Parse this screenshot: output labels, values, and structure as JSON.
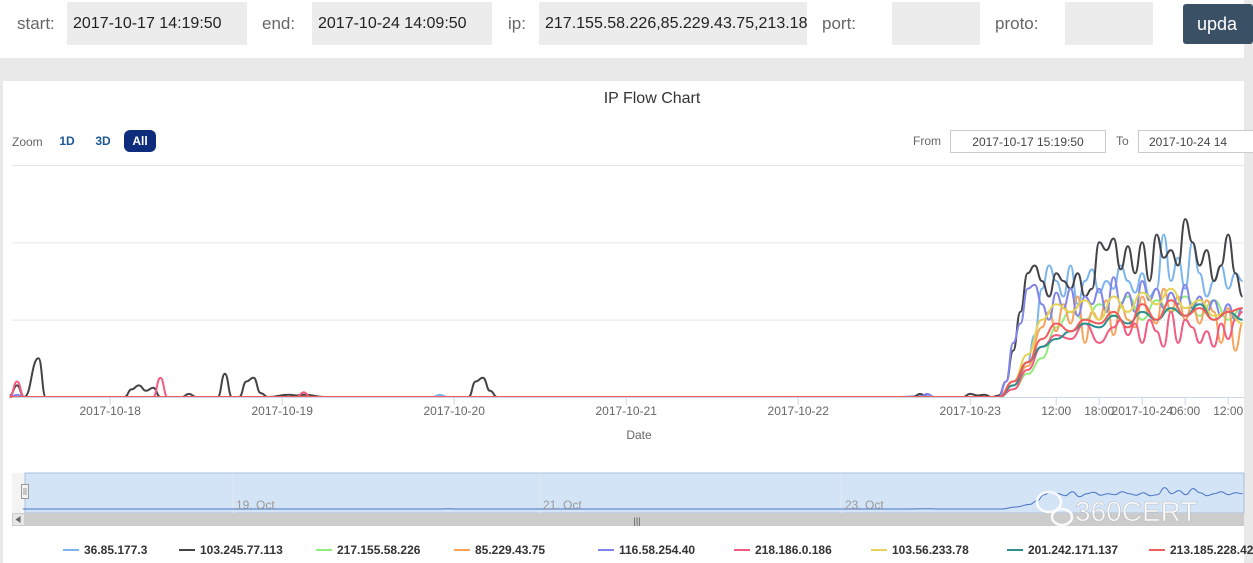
{
  "filters": {
    "start_label": "start:",
    "start_value": "2017-10-17 14:19:50",
    "end_label": "end:",
    "end_value": "2017-10-24 14:09:50",
    "ip_label": "ip:",
    "ip_value": "217.155.58.226,85.229.43.75,213.18",
    "port_label": "port:",
    "port_value": "",
    "proto_label": "proto:",
    "proto_value": "",
    "update_label": "upda"
  },
  "range_selector": {
    "zoom_label": "Zoom",
    "buttons": [
      "1D",
      "3D",
      "All"
    ],
    "active": "All",
    "from_label": "From",
    "from_value": "2017-10-17 15:19:50",
    "to_label": "To",
    "to_value": "2017-10-24 14"
  },
  "navigator": {
    "labels": [
      "19. Oct",
      "21. Oct",
      "23. Oct"
    ],
    "handle_icon": "grip-icon",
    "scroll_left_icon": "arrow-left-icon",
    "scroll_grip": "|||"
  },
  "watermark": {
    "text": "360CERT",
    "icon": "wechat-icon"
  },
  "chart_data": {
    "type": "line",
    "title": "IP Flow Chart",
    "xlabel": "Date",
    "ylabel": "",
    "x_ticks": [
      "2017-10-18",
      "2017-10-19",
      "2017-10-20",
      "2017-10-21",
      "2017-10-22",
      "2017-10-23",
      "12:00",
      "18:00",
      "2017-10-24",
      "06:00",
      "12:00"
    ],
    "x_tick_hours": [
      0,
      24,
      48,
      72,
      96,
      120,
      132,
      138,
      144,
      150,
      156
    ],
    "x_range_hours": [
      -13.7,
      158.2
    ],
    "y_range": [
      0,
      300
    ],
    "y_gridlines": [
      100,
      200,
      300
    ],
    "grid": true,
    "legend_position": "bottom",
    "series": [
      {
        "name": "36.85.177.3",
        "color": "#7cb5ec",
        "points": [
          [
            -14,
            0
          ],
          [
            45,
            0
          ],
          [
            46,
            3
          ],
          [
            47,
            0
          ],
          [
            110,
            0
          ],
          [
            114,
            2
          ],
          [
            115,
            0
          ],
          [
            124,
            0
          ],
          [
            126,
            20
          ],
          [
            128,
            45
          ],
          [
            129,
            80
          ],
          [
            130,
            140
          ],
          [
            131,
            170
          ],
          [
            132,
            150
          ],
          [
            133,
            130
          ],
          [
            134,
            170
          ],
          [
            135,
            120
          ],
          [
            136,
            150
          ],
          [
            137,
            165
          ],
          [
            138,
            135
          ],
          [
            139,
            150
          ],
          [
            140,
            140
          ],
          [
            141,
            170
          ],
          [
            142,
            150
          ],
          [
            143,
            135
          ],
          [
            144,
            160
          ],
          [
            145,
            130
          ],
          [
            146,
            140
          ],
          [
            147,
            210
          ],
          [
            148,
            150
          ],
          [
            149,
            180
          ],
          [
            150,
            140
          ],
          [
            151,
            200
          ],
          [
            152,
            160
          ],
          [
            153,
            130
          ],
          [
            154,
            150
          ],
          [
            155,
            170
          ],
          [
            156,
            140
          ],
          [
            157,
            160
          ],
          [
            158,
            150
          ]
        ]
      },
      {
        "name": "103.245.77.113",
        "color": "#434348",
        "points": [
          [
            -14,
            2
          ],
          [
            -13,
            15
          ],
          [
            -12,
            0
          ],
          [
            -10,
            50
          ],
          [
            -9,
            0
          ],
          [
            2,
            0
          ],
          [
            3,
            10
          ],
          [
            4,
            15
          ],
          [
            5,
            8
          ],
          [
            6,
            12
          ],
          [
            7,
            0
          ],
          [
            10,
            0
          ],
          [
            11,
            4
          ],
          [
            12,
            0
          ],
          [
            15,
            0
          ],
          [
            16,
            30
          ],
          [
            17,
            0
          ],
          [
            18,
            0
          ],
          [
            19,
            20
          ],
          [
            20,
            25
          ],
          [
            21,
            5
          ],
          [
            22,
            0
          ],
          [
            25,
            3
          ],
          [
            26,
            2
          ],
          [
            27,
            3
          ],
          [
            30,
            0
          ],
          [
            50,
            0
          ],
          [
            51,
            20
          ],
          [
            52,
            25
          ],
          [
            53,
            8
          ],
          [
            54,
            0
          ],
          [
            112,
            0
          ],
          [
            113,
            4
          ],
          [
            114,
            0
          ],
          [
            119,
            0
          ],
          [
            120,
            4
          ],
          [
            121,
            2
          ],
          [
            122,
            3
          ],
          [
            123,
            0
          ],
          [
            124,
            2
          ],
          [
            125,
            20
          ],
          [
            126,
            60
          ],
          [
            127,
            110
          ],
          [
            128,
            160
          ],
          [
            129,
            170
          ],
          [
            130,
            150
          ],
          [
            131,
            130
          ],
          [
            132,
            160
          ],
          [
            133,
            150
          ],
          [
            134,
            140
          ],
          [
            135,
            160
          ],
          [
            136,
            130
          ],
          [
            137,
            140
          ],
          [
            138,
            200
          ],
          [
            139,
            190
          ],
          [
            140,
            205
          ],
          [
            141,
            165
          ],
          [
            142,
            195
          ],
          [
            143,
            160
          ],
          [
            144,
            200
          ],
          [
            145,
            150
          ],
          [
            146,
            210
          ],
          [
            147,
            180
          ],
          [
            148,
            190
          ],
          [
            149,
            170
          ],
          [
            150,
            230
          ],
          [
            151,
            200
          ],
          [
            152,
            170
          ],
          [
            153,
            190
          ],
          [
            154,
            150
          ],
          [
            155,
            170
          ],
          [
            156,
            210
          ],
          [
            157,
            160
          ],
          [
            158,
            130
          ]
        ]
      },
      {
        "name": "217.155.58.226",
        "color": "#90ed7d",
        "points": [
          [
            -14,
            0
          ],
          [
            124,
            0
          ],
          [
            126,
            10
          ],
          [
            128,
            30
          ],
          [
            130,
            50
          ],
          [
            132,
            90
          ],
          [
            134,
            110
          ],
          [
            136,
            100
          ],
          [
            138,
            120
          ],
          [
            140,
            105
          ],
          [
            142,
            130
          ],
          [
            144,
            100
          ],
          [
            146,
            125
          ],
          [
            148,
            110
          ],
          [
            150,
            130
          ],
          [
            152,
            105
          ],
          [
            154,
            125
          ],
          [
            156,
            100
          ],
          [
            158,
            115
          ]
        ]
      },
      {
        "name": "85.229.43.75",
        "color": "#f7a35c",
        "points": [
          [
            -14,
            0
          ],
          [
            124,
            0
          ],
          [
            126,
            15
          ],
          [
            128,
            40
          ],
          [
            130,
            90
          ],
          [
            131,
            110
          ],
          [
            132,
            85
          ],
          [
            133,
            120
          ],
          [
            134,
            95
          ],
          [
            135,
            130
          ],
          [
            136,
            70
          ],
          [
            137,
            110
          ],
          [
            138,
            100
          ],
          [
            139,
            125
          ],
          [
            140,
            80
          ],
          [
            141,
            120
          ],
          [
            142,
            100
          ],
          [
            143,
            90
          ],
          [
            144,
            130
          ],
          [
            145,
            105
          ],
          [
            146,
            95
          ],
          [
            147,
            140
          ],
          [
            148,
            110
          ],
          [
            149,
            130
          ],
          [
            150,
            100
          ],
          [
            151,
            120
          ],
          [
            152,
            95
          ],
          [
            153,
            125
          ],
          [
            154,
            110
          ],
          [
            155,
            70
          ],
          [
            156,
            115
          ],
          [
            157,
            60
          ],
          [
            158,
            95
          ]
        ]
      },
      {
        "name": "116.58.254.40",
        "color": "#8085e9",
        "points": [
          [
            -14,
            0
          ],
          [
            -13,
            3
          ],
          [
            -12,
            0
          ],
          [
            113,
            0
          ],
          [
            114,
            4
          ],
          [
            115,
            0
          ],
          [
            124,
            0
          ],
          [
            125,
            20
          ],
          [
            126,
            70
          ],
          [
            127,
            95
          ],
          [
            128,
            140
          ],
          [
            129,
            145
          ],
          [
            130,
            120
          ],
          [
            131,
            100
          ],
          [
            132,
            135
          ],
          [
            133,
            115
          ],
          [
            134,
            140
          ],
          [
            135,
            105
          ],
          [
            136,
            130
          ],
          [
            137,
            120
          ],
          [
            138,
            140
          ],
          [
            139,
            110
          ],
          [
            140,
            155
          ],
          [
            141,
            120
          ],
          [
            142,
            135
          ],
          [
            143,
            110
          ],
          [
            144,
            150
          ],
          [
            145,
            125
          ],
          [
            146,
            140
          ],
          [
            147,
            115
          ],
          [
            148,
            135
          ],
          [
            149,
            120
          ],
          [
            150,
            145
          ],
          [
            151,
            115
          ],
          [
            152,
            130
          ],
          [
            153,
            110
          ],
          [
            154,
            125
          ],
          [
            155,
            105
          ],
          [
            156,
            120
          ],
          [
            157,
            100
          ],
          [
            158,
            115
          ]
        ]
      },
      {
        "name": "218.186.0.186",
        "color": "#f15c80",
        "points": [
          [
            -14,
            0
          ],
          [
            -13,
            20
          ],
          [
            -12,
            0
          ],
          [
            6,
            0
          ],
          [
            7,
            25
          ],
          [
            8,
            0
          ],
          [
            26,
            0
          ],
          [
            27,
            6
          ],
          [
            28,
            0
          ],
          [
            124,
            0
          ],
          [
            126,
            10
          ],
          [
            128,
            35
          ],
          [
            130,
            65
          ],
          [
            132,
            80
          ],
          [
            134,
            75
          ],
          [
            136,
            95
          ],
          [
            138,
            70
          ],
          [
            140,
            90
          ],
          [
            141,
            100
          ],
          [
            142,
            80
          ],
          [
            143,
            95
          ],
          [
            144,
            70
          ],
          [
            145,
            100
          ],
          [
            146,
            85
          ],
          [
            147,
            65
          ],
          [
            148,
            110
          ],
          [
            149,
            70
          ],
          [
            150,
            100
          ],
          [
            151,
            90
          ],
          [
            152,
            70
          ],
          [
            153,
            85
          ],
          [
            154,
            65
          ],
          [
            155,
            95
          ],
          [
            156,
            75
          ],
          [
            157,
            100
          ],
          [
            158,
            110
          ]
        ]
      },
      {
        "name": "103.56.233.78",
        "color": "#e4d354",
        "points": [
          [
            -14,
            0
          ],
          [
            124,
            0
          ],
          [
            126,
            20
          ],
          [
            128,
            55
          ],
          [
            130,
            100
          ],
          [
            132,
            120
          ],
          [
            134,
            110
          ],
          [
            136,
            125
          ],
          [
            138,
            100
          ],
          [
            140,
            130
          ],
          [
            142,
            110
          ],
          [
            144,
            135
          ],
          [
            146,
            120
          ],
          [
            148,
            140
          ],
          [
            150,
            115
          ],
          [
            152,
            125
          ],
          [
            154,
            105
          ],
          [
            156,
            110
          ],
          [
            158,
            95
          ]
        ]
      },
      {
        "name": "201.242.171.137",
        "color": "#2b908f",
        "points": [
          [
            -14,
            0
          ],
          [
            124,
            0
          ],
          [
            126,
            15
          ],
          [
            128,
            45
          ],
          [
            130,
            65
          ],
          [
            132,
            75
          ],
          [
            134,
            85
          ],
          [
            136,
            95
          ],
          [
            138,
            90
          ],
          [
            140,
            105
          ],
          [
            142,
            95
          ],
          [
            144,
            110
          ],
          [
            146,
            100
          ],
          [
            148,
            115
          ],
          [
            150,
            105
          ],
          [
            152,
            120
          ],
          [
            154,
            100
          ],
          [
            156,
            110
          ],
          [
            158,
            100
          ]
        ]
      },
      {
        "name": "213.185.228.42",
        "color": "#f45b5b",
        "points": [
          [
            -14,
            0
          ],
          [
            124,
            0
          ],
          [
            126,
            20
          ],
          [
            128,
            45
          ],
          [
            130,
            75
          ],
          [
            132,
            95
          ],
          [
            134,
            85
          ],
          [
            136,
            100
          ],
          [
            138,
            95
          ],
          [
            140,
            110
          ],
          [
            142,
            90
          ],
          [
            144,
            120
          ],
          [
            146,
            100
          ],
          [
            148,
            125
          ],
          [
            150,
            105
          ],
          [
            152,
            115
          ],
          [
            154,
            100
          ],
          [
            156,
            110
          ],
          [
            158,
            115
          ]
        ]
      }
    ]
  }
}
